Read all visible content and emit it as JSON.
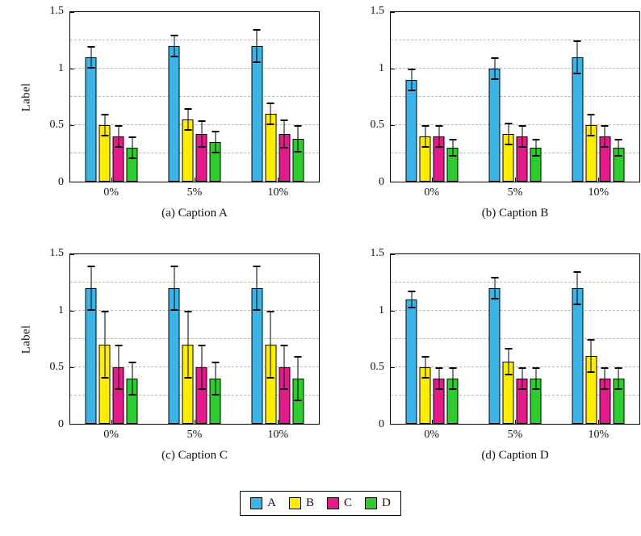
{
  "legend": {
    "entries": [
      {
        "label": "A",
        "color": "#3cb4e7"
      },
      {
        "label": "B",
        "color": "#ffed00"
      },
      {
        "label": "C",
        "color": "#e51a8a"
      },
      {
        "label": "D",
        "color": "#2ecc2e"
      }
    ]
  },
  "axis": {
    "ytick_labels": [
      "0",
      "0.5",
      "1",
      "1.5"
    ]
  },
  "chart_data": [
    {
      "type": "bar",
      "caption": "(a) Caption A",
      "ylabel": "Label",
      "categories": [
        "0%",
        "5%",
        "10%"
      ],
      "ylim": [
        0,
        1.5
      ],
      "yticks": [
        {
          "v": 0,
          "label": "0"
        },
        {
          "v": 0.5,
          "label": "0.5"
        },
        {
          "v": 1,
          "label": "1"
        },
        {
          "v": 1.5,
          "label": "1.5"
        }
      ],
      "gridlines": [
        0.25,
        0.5,
        0.75,
        1.0,
        1.25
      ],
      "legend_position": "none",
      "grid": "dashed",
      "series": [
        {
          "name": "A",
          "color": "#3cb4e7",
          "values": [
            1.1,
            1.2,
            1.2
          ],
          "errors": [
            0.1,
            0.1,
            0.15
          ]
        },
        {
          "name": "B",
          "color": "#ffed00",
          "values": [
            0.5,
            0.55,
            0.6
          ],
          "errors": [
            0.1,
            0.1,
            0.1
          ]
        },
        {
          "name": "C",
          "color": "#e51a8a",
          "values": [
            0.4,
            0.42,
            0.42
          ],
          "errors": [
            0.1,
            0.12,
            0.13
          ]
        },
        {
          "name": "D",
          "color": "#2ecc2e",
          "values": [
            0.3,
            0.35,
            0.38
          ],
          "errors": [
            0.1,
            0.1,
            0.12
          ]
        }
      ]
    },
    {
      "type": "bar",
      "caption": "(b) Caption B",
      "categories": [
        "0%",
        "5%",
        "10%"
      ],
      "ylim": [
        0,
        1.5
      ],
      "yticks": [
        {
          "v": 0,
          "label": "0"
        },
        {
          "v": 0.5,
          "label": "0.5"
        },
        {
          "v": 1,
          "label": "1"
        },
        {
          "v": 1.5,
          "label": "1.5"
        }
      ],
      "gridlines": [
        0.25,
        0.5,
        0.75,
        1.0,
        1.25
      ],
      "legend_position": "none",
      "grid": "dashed",
      "series": [
        {
          "name": "A",
          "color": "#3cb4e7",
          "values": [
            0.9,
            1.0,
            1.1
          ],
          "errors": [
            0.1,
            0.1,
            0.15
          ]
        },
        {
          "name": "B",
          "color": "#ffed00",
          "values": [
            0.4,
            0.42,
            0.5
          ],
          "errors": [
            0.1,
            0.1,
            0.1
          ]
        },
        {
          "name": "C",
          "color": "#e51a8a",
          "values": [
            0.4,
            0.4,
            0.4
          ],
          "errors": [
            0.1,
            0.1,
            0.1
          ]
        },
        {
          "name": "D",
          "color": "#2ecc2e",
          "values": [
            0.3,
            0.3,
            0.3
          ],
          "errors": [
            0.08,
            0.08,
            0.08
          ]
        }
      ]
    },
    {
      "type": "bar",
      "caption": "(c) Caption C",
      "ylabel": "Label",
      "categories": [
        "0%",
        "5%",
        "10%"
      ],
      "ylim": [
        0,
        1.5
      ],
      "yticks": [
        {
          "v": 0,
          "label": "0"
        },
        {
          "v": 0.5,
          "label": "0.5"
        },
        {
          "v": 1,
          "label": "1"
        },
        {
          "v": 1.5,
          "label": "1.5"
        }
      ],
      "gridlines": [
        0.25,
        0.5,
        0.75,
        1.0,
        1.25
      ],
      "legend_position": "none",
      "grid": "dashed",
      "series": [
        {
          "name": "A",
          "color": "#3cb4e7",
          "values": [
            1.2,
            1.2,
            1.2
          ],
          "errors": [
            0.2,
            0.2,
            0.2
          ]
        },
        {
          "name": "B",
          "color": "#ffed00",
          "values": [
            0.7,
            0.7,
            0.7
          ],
          "errors": [
            0.3,
            0.3,
            0.3
          ]
        },
        {
          "name": "C",
          "color": "#e51a8a",
          "values": [
            0.5,
            0.5,
            0.5
          ],
          "errors": [
            0.2,
            0.2,
            0.2
          ]
        },
        {
          "name": "D",
          "color": "#2ecc2e",
          "values": [
            0.4,
            0.4,
            0.4
          ],
          "errors": [
            0.15,
            0.15,
            0.2
          ]
        }
      ]
    },
    {
      "type": "bar",
      "caption": "(d) Caption D",
      "categories": [
        "0%",
        "5%",
        "10%"
      ],
      "ylim": [
        0,
        1.5
      ],
      "yticks": [
        {
          "v": 0,
          "label": "0"
        },
        {
          "v": 0.5,
          "label": "0.5"
        },
        {
          "v": 1,
          "label": "1"
        },
        {
          "v": 1.5,
          "label": "1.5"
        }
      ],
      "gridlines": [
        0.25,
        0.5,
        0.75,
        1.0,
        1.25
      ],
      "legend_position": "none",
      "grid": "dashed",
      "series": [
        {
          "name": "A",
          "color": "#3cb4e7",
          "values": [
            1.1,
            1.2,
            1.2
          ],
          "errors": [
            0.08,
            0.1,
            0.15
          ]
        },
        {
          "name": "B",
          "color": "#ffed00",
          "values": [
            0.5,
            0.55,
            0.6
          ],
          "errors": [
            0.1,
            0.12,
            0.15
          ]
        },
        {
          "name": "C",
          "color": "#e51a8a",
          "values": [
            0.4,
            0.4,
            0.4
          ],
          "errors": [
            0.1,
            0.1,
            0.1
          ]
        },
        {
          "name": "D",
          "color": "#2ecc2e",
          "values": [
            0.4,
            0.4,
            0.4
          ],
          "errors": [
            0.1,
            0.1,
            0.1
          ]
        }
      ]
    }
  ]
}
